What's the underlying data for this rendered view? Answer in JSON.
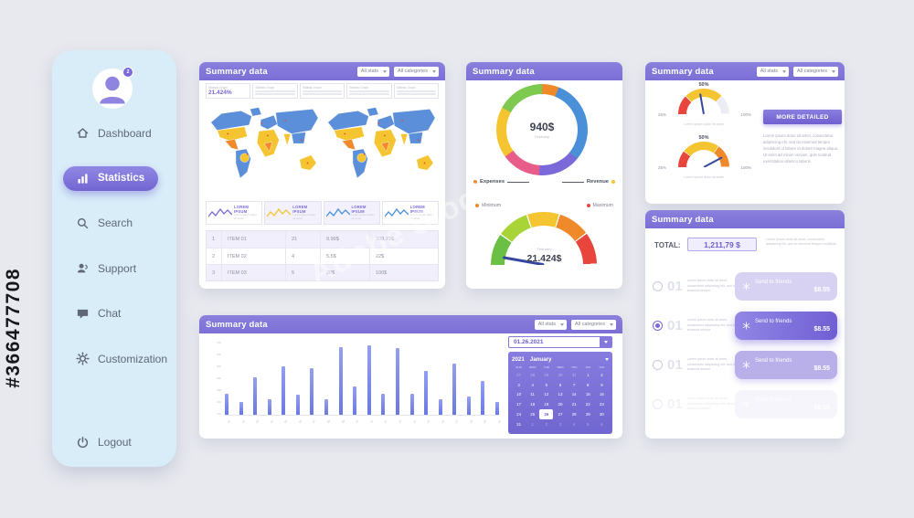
{
  "watermark": {
    "side_id": "#366477708",
    "brand": "Adobe Stock"
  },
  "sidebar": {
    "avatar_badge": "2",
    "items": [
      {
        "label": "Dashboard",
        "icon": "home",
        "active": false
      },
      {
        "label": "Statistics",
        "icon": "stats",
        "active": true
      },
      {
        "label": "Search",
        "icon": "search",
        "active": false
      },
      {
        "label": "Support",
        "icon": "support",
        "active": false
      },
      {
        "label": "Chat",
        "icon": "chat",
        "active": false
      },
      {
        "label": "Customization",
        "icon": "gear",
        "active": false
      }
    ],
    "logout_label": "Logout"
  },
  "map_card": {
    "title": "Summary data",
    "dropdown_stats": "All stats",
    "dropdown_categories": "All categories",
    "stat_boxes": [
      {
        "label": "Statistic Graph",
        "value": "21.424%"
      },
      {
        "label": "Statistic Graph",
        "value": ""
      },
      {
        "label": "Statistic Graph",
        "value": ""
      },
      {
        "label": "Statistic Graph",
        "value": ""
      },
      {
        "label": "Statistic Graph",
        "value": ""
      }
    ],
    "widgets": [
      {
        "label": "LOREM IPSUM",
        "caption": "Lorem ipsum dolor sit amet",
        "color": "#7b68d9"
      },
      {
        "label": "LOREM IPSUM",
        "caption": "Lorem ipsum dolor sit amet",
        "color": "#f5c531"
      },
      {
        "label": "LOREM IPSUM",
        "caption": "Lorem ipsum dolor sit amet",
        "color": "#4a90d9"
      },
      {
        "label": "LOREM IPSUM",
        "caption": "Lorem ipsum dolor sit amet",
        "color": "#4a90d9"
      }
    ],
    "table_rows": [
      {
        "num": "1",
        "item": "ITEM 01",
        "qty": "21",
        "price": "9.99$",
        "total": "209.79$"
      },
      {
        "num": "2",
        "item": "ITEM 02",
        "qty": "4",
        "price": "5.5$",
        "total": "22$"
      },
      {
        "num": "3",
        "item": "ITEM 03",
        "qty": "5",
        "price": "20$",
        "total": "100$"
      }
    ]
  },
  "donut_card": {
    "title": "Summary data",
    "center_value": "940$",
    "center_label": "February",
    "legend_left": "Expenses",
    "legend_right": "Revenue",
    "min_label": "Minimum",
    "max_label": "Maximum",
    "gauge_period": "February",
    "gauge_value": "21.424$"
  },
  "gauges_card": {
    "title": "Summary data",
    "dropdown_stats": "All stats",
    "dropdown_categories": "All categories",
    "button_label": "MORE DETAILED",
    "paragraph": "Lorem ipsum dolor sit amet, consectetur adipiscing elit, sed do eiusmod tempor incididunt ut labore et dolore magna aliqua. Ut enim ad minim veniam, quis nostrud exercitation ullamco laboris.",
    "gauges": [
      {
        "caption": "Lorem ipsum dolor sit amet"
      },
      {
        "caption": "Lorem ipsum dolor sit amet"
      }
    ]
  },
  "total_card": {
    "title": "Summary data",
    "total_label": "TOTAL:",
    "total_value": "1,211,79 $",
    "total_note": "Lorem ipsum dolor sit amet, consectetur adipiscing elit, sed do eiusmod tempor incididunt",
    "rows": [
      {
        "num": "01",
        "text": "Lorem ipsum dolor sit amet, consectetur adipiscing elit, sed do eiusmod tempor",
        "button": "Send to friends",
        "price": "$8.55",
        "style": "light",
        "selected": false
      },
      {
        "num": "01",
        "text": "Lorem ipsum dolor sit amet, consectetur adipiscing elit, sed do eiusmod tempor",
        "button": "Send to friends",
        "price": "$8.55",
        "style": "solid",
        "selected": true
      },
      {
        "num": "01",
        "text": "Lorem ipsum dolor sit amet, consectetur adipiscing elit, sed do eiusmod tempor",
        "button": "Send to friends",
        "price": "$8.55",
        "style": "medium",
        "selected": false
      },
      {
        "num": "01",
        "text": "Lorem ipsum dolor sit amet, consectetur adipiscing elit, sed do eiusmod tempor",
        "button": "Send to friends",
        "price": "$8.55",
        "style": "ghost",
        "selected": false
      }
    ]
  },
  "chart_card": {
    "title": "Summary data",
    "dropdown_stats": "All stats",
    "dropdown_categories": "All categories",
    "date_value": "01.26.2021",
    "calendar": {
      "year": "2021",
      "month": "January",
      "weekdays": [
        "SUN",
        "MON",
        "TUE",
        "WED",
        "THU",
        "FRI",
        "SAT"
      ],
      "days": [
        {
          "d": "27",
          "out": true
        },
        {
          "d": "28",
          "out": true
        },
        {
          "d": "29",
          "out": true
        },
        {
          "d": "30",
          "out": true
        },
        {
          "d": "31",
          "out": true
        },
        {
          "d": "1"
        },
        {
          "d": "2"
        },
        {
          "d": "3"
        },
        {
          "d": "4"
        },
        {
          "d": "5"
        },
        {
          "d": "6"
        },
        {
          "d": "7"
        },
        {
          "d": "8"
        },
        {
          "d": "9"
        },
        {
          "d": "10"
        },
        {
          "d": "11"
        },
        {
          "d": "12"
        },
        {
          "d": "13"
        },
        {
          "d": "14"
        },
        {
          "d": "15"
        },
        {
          "d": "16"
        },
        {
          "d": "17"
        },
        {
          "d": "18"
        },
        {
          "d": "19"
        },
        {
          "d": "20"
        },
        {
          "d": "21"
        },
        {
          "d": "22"
        },
        {
          "d": "23"
        },
        {
          "d": "24"
        },
        {
          "d": "25"
        },
        {
          "d": "26",
          "sel": true
        },
        {
          "d": "27"
        },
        {
          "d": "28"
        },
        {
          "d": "29"
        },
        {
          "d": "30"
        },
        {
          "d": "31"
        },
        {
          "d": "1",
          "out": true
        },
        {
          "d": "2",
          "out": true
        },
        {
          "d": "3",
          "out": true
        },
        {
          "d": "4",
          "out": true
        },
        {
          "d": "5",
          "out": true
        },
        {
          "d": "6",
          "out": true
        }
      ]
    }
  },
  "chart_data": [
    {
      "id": "summary-bars",
      "type": "bar",
      "title": "Summary data",
      "x": [
        "01",
        "02",
        "03",
        "04",
        "05",
        "06",
        "07",
        "08",
        "09",
        "10",
        "11",
        "12",
        "13",
        "14",
        "15",
        "16",
        "17",
        "18",
        "19",
        "20"
      ],
      "values": [
        30,
        18,
        52,
        22,
        68,
        28,
        66,
        22,
        95,
        40,
        97,
        30,
        93,
        30,
        62,
        22,
        72,
        26,
        48,
        18
      ],
      "y_ticks": [
        "700",
        "600",
        "500",
        "400",
        "300",
        "200",
        "100"
      ],
      "ylim": [
        0,
        100
      ],
      "bar_color": "#7d8ae6",
      "legend": "none"
    },
    {
      "id": "expenses-revenue-donut",
      "type": "pie",
      "center_value": "940$",
      "center_label": "February",
      "legend": [
        "Expenses",
        "Revenue"
      ],
      "slices": [
        {
          "name": "slice-1",
          "value": 6,
          "color": "#f0892a"
        },
        {
          "name": "slice-2",
          "value": 30,
          "color": "#4a90d9"
        },
        {
          "name": "slice-3",
          "value": 15,
          "color": "#7b68d9"
        },
        {
          "name": "slice-4",
          "value": 14,
          "color": "#e85c8a"
        },
        {
          "name": "slice-5",
          "value": 18,
          "color": "#f5c531"
        },
        {
          "name": "slice-6",
          "value": 17,
          "color": "#7ec94f"
        }
      ]
    },
    {
      "id": "february-speedometer",
      "type": "pie",
      "style": "half-gauge",
      "value": "21.424$",
      "period": "February",
      "min_label": "Minimum",
      "max_label": "Maximum",
      "needle_angle": -80,
      "segments": [
        {
          "value": 20,
          "color": "#6abf45"
        },
        {
          "value": 20,
          "color": "#a8d437"
        },
        {
          "value": 20,
          "color": "#f5c531"
        },
        {
          "value": 20,
          "color": "#f0892a"
        },
        {
          "value": 20,
          "color": "#e8453c"
        }
      ]
    },
    {
      "id": "mini-gauge-1",
      "type": "pie",
      "style": "half-gauge",
      "top_label": "50%",
      "left_label": "25%",
      "right_label": "100%",
      "needle_angle": -10,
      "segments": [
        {
          "value": 25,
          "color": "#e8453c"
        },
        {
          "value": 50,
          "color": "#f5c531"
        },
        {
          "value": 25,
          "color": "#ececf4"
        }
      ]
    },
    {
      "id": "mini-gauge-2",
      "type": "pie",
      "style": "half-gauge",
      "top_label": "50%",
      "left_label": "25%",
      "right_label": "100%",
      "needle_angle": 62,
      "segments": [
        {
          "value": 22,
          "color": "#e8453c"
        },
        {
          "value": 48,
          "color": "#f5c531"
        },
        {
          "value": 30,
          "color": "#f0892a"
        }
      ]
    }
  ]
}
